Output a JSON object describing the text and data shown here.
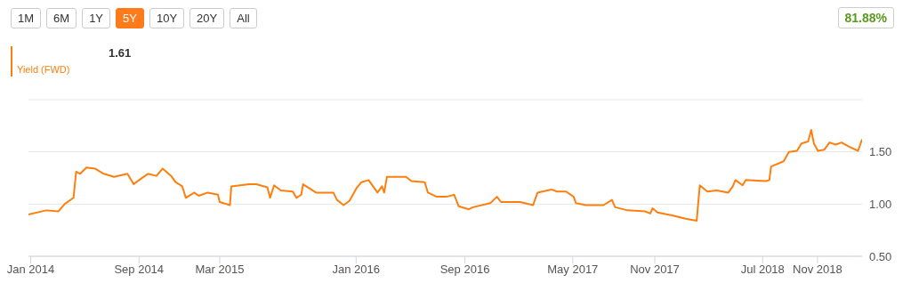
{
  "chart_data": {
    "type": "line",
    "annotations": [
      "1M",
      "6M",
      "1Y",
      "5Y",
      "10Y",
      "20Y",
      "All",
      "81.88%",
      "1.61"
    ],
    "series": [
      {
        "name": "Yield (FWD)",
        "color": "#ff7f0e",
        "x": [
          "2013-12-27",
          "2014-02-05",
          "2014-03-04",
          "2014-03-18",
          "2014-04-07",
          "2014-04-13",
          "2014-04-22",
          "2014-05-06",
          "2014-05-25",
          "2014-06-14",
          "2014-07-07",
          "2014-08-06",
          "2014-08-20",
          "2014-09-01",
          "2014-09-21",
          "2014-10-10",
          "2014-10-24",
          "2014-11-12",
          "2014-11-22",
          "2014-12-07",
          "2014-12-15",
          "2015-01-03",
          "2015-01-13",
          "2015-02-02",
          "2015-02-25",
          "2015-03-01",
          "2015-03-24",
          "2015-03-27",
          "2015-05-06",
          "2015-05-22",
          "2015-06-16",
          "2015-06-22",
          "2015-07-01",
          "2015-07-16",
          "2015-08-12",
          "2015-08-20",
          "2015-08-31",
          "2015-09-04",
          "2015-10-03",
          "2015-10-23",
          "2015-11-11",
          "2015-11-19",
          "2015-12-04",
          "2015-12-17",
          "2016-01-03",
          "2016-01-13",
          "2016-01-29",
          "2016-02-18",
          "2016-02-28",
          "2016-03-04",
          "2016-03-10",
          "2016-03-26",
          "2016-04-22",
          "2016-05-04",
          "2016-06-03",
          "2016-06-10",
          "2016-06-30",
          "2016-07-22",
          "2016-08-08",
          "2016-08-18",
          "2016-09-10",
          "2016-09-19",
          "2016-10-28",
          "2016-11-12",
          "2016-11-21",
          "2017-01-03",
          "2017-02-01",
          "2017-02-11",
          "2017-03-14",
          "2017-03-27",
          "2017-04-16",
          "2017-05-03",
          "2017-05-08",
          "2017-05-31",
          "2017-07-09",
          "2017-07-28",
          "2017-08-04",
          "2017-09-01",
          "2017-10-10",
          "2017-10-22",
          "2017-10-27",
          "2017-11-07",
          "2017-12-12",
          "2018-01-09",
          "2018-02-03",
          "2018-02-10",
          "2018-02-27",
          "2018-03-20",
          "2018-04-15",
          "2018-04-25",
          "2018-05-01",
          "2018-05-17",
          "2018-05-24",
          "2018-07-08",
          "2018-07-16",
          "2018-07-20",
          "2018-08-17",
          "2018-08-29",
          "2018-09-16",
          "2018-09-26",
          "2018-10-11",
          "2018-10-18",
          "2018-10-24",
          "2018-11-02",
          "2018-11-16",
          "2018-11-28",
          "2018-12-12",
          "2018-12-25",
          "2019-01-11",
          "2019-01-31",
          "2019-02-09"
        ],
        "values": [
          0.9,
          0.94,
          0.93,
          1.0,
          1.06,
          1.31,
          1.29,
          1.35,
          1.34,
          1.29,
          1.26,
          1.29,
          1.19,
          1.23,
          1.29,
          1.27,
          1.34,
          1.27,
          1.21,
          1.17,
          1.06,
          1.11,
          1.08,
          1.11,
          1.09,
          1.02,
          0.99,
          1.17,
          1.19,
          1.19,
          1.16,
          1.06,
          1.18,
          1.13,
          1.12,
          1.06,
          1.09,
          1.19,
          1.11,
          1.11,
          1.11,
          1.04,
          0.99,
          1.03,
          1.16,
          1.21,
          1.23,
          1.11,
          1.17,
          1.11,
          1.26,
          1.26,
          1.26,
          1.22,
          1.21,
          1.11,
          1.07,
          1.07,
          1.09,
          0.98,
          0.95,
          0.97,
          1.01,
          1.07,
          1.02,
          1.02,
          0.99,
          1.11,
          1.14,
          1.12,
          1.12,
          1.07,
          1.01,
          0.99,
          0.99,
          1.04,
          0.97,
          0.94,
          0.93,
          0.91,
          0.96,
          0.92,
          0.89,
          0.86,
          0.84,
          1.18,
          1.12,
          1.13,
          1.11,
          1.17,
          1.23,
          1.18,
          1.23,
          1.22,
          1.23,
          1.36,
          1.41,
          1.5,
          1.51,
          1.58,
          1.6,
          1.71,
          1.58,
          1.51,
          1.52,
          1.59,
          1.57,
          1.59,
          1.55,
          1.51,
          1.62
        ]
      }
    ],
    "xlim": [
      "2013-12-27",
      "2019-02-09"
    ],
    "xticks": [
      {
        "value": "2014-01-01",
        "label": "Jan 2014"
      },
      {
        "value": "2014-09-01",
        "label": "Sep 2014"
      },
      {
        "value": "2015-03-01",
        "label": "Mar 2015"
      },
      {
        "value": "2016-01-01",
        "label": "Jan 2016"
      },
      {
        "value": "2016-09-01",
        "label": "Sep 2016"
      },
      {
        "value": "2017-05-01",
        "label": "May 2017"
      },
      {
        "value": "2017-11-01",
        "label": "Nov 2017"
      },
      {
        "value": "2018-07-01",
        "label": "Jul 2018"
      },
      {
        "value": "2018-11-01",
        "label": "Nov 2018"
      }
    ],
    "ylim": [
      0.5,
      2.0
    ],
    "yticks": [
      {
        "value": 0.5,
        "label": "0.50"
      },
      {
        "value": 1.0,
        "label": "1.00"
      },
      {
        "value": 1.5,
        "label": "1.50"
      },
      {
        "value": 2.0,
        "label": null
      }
    ],
    "grid": "y",
    "legend": "top left",
    "marker": "none",
    "line_style": "solid"
  }
}
